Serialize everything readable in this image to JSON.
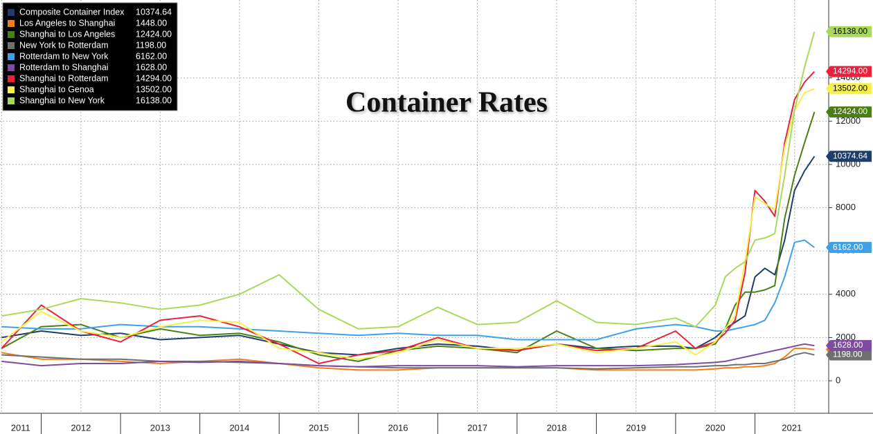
{
  "chart_data": {
    "type": "line",
    "title": "Container Rates",
    "legend": "upper left",
    "grid": true,
    "xlim": [
      2011.48,
      2021.93
    ],
    "ylim": [
      -1500,
      17600
    ],
    "yticks": [
      0,
      2000,
      4000,
      6000,
      8000,
      10000,
      12000,
      14000
    ],
    "xticks": [
      2011,
      2012,
      2013,
      2014,
      2015,
      2016,
      2017,
      2018,
      2019,
      2020,
      2021
    ],
    "x": [
      2011.5,
      2012,
      2012.5,
      2013,
      2013.5,
      2014,
      2014.5,
      2015,
      2015.5,
      2016,
      2016.5,
      2017,
      2017.5,
      2018,
      2018.5,
      2019,
      2019.5,
      2020,
      2020.25,
      2020.5,
      2020.625,
      2020.75,
      2020.875,
      2021,
      2021.125,
      2021.25,
      2021.375,
      2021.5,
      2021.625,
      2021.75
    ],
    "series": [
      {
        "name": "Composite Container Index",
        "legend_value": "10374.64",
        "color": "#1f3d6b",
        "values": [
          2000,
          2300,
          2100,
          2200,
          1900,
          2000,
          2100,
          1700,
          1300,
          1200,
          1500,
          1700,
          1600,
          1400,
          1700,
          1500,
          1600,
          1600,
          1500,
          2000,
          2400,
          2700,
          3000,
          4800,
          5200,
          4900,
          6500,
          8800,
          9700,
          10374.64
        ]
      },
      {
        "name": "Los Angeles to Shanghai",
        "legend_value": "1448.00",
        "color": "#f07f1a",
        "values": [
          1300,
          1000,
          1000,
          900,
          800,
          900,
          1000,
          800,
          600,
          500,
          500,
          600,
          600,
          600,
          600,
          500,
          500,
          500,
          500,
          550,
          600,
          600,
          650,
          650,
          700,
          800,
          1100,
          1500,
          1500,
          1448
        ]
      },
      {
        "name": "Shanghai to Los Angeles",
        "legend_value": "12424.00",
        "color": "#4a7f12",
        "values": [
          1500,
          2500,
          2600,
          2000,
          2400,
          2100,
          2200,
          1800,
          1200,
          900,
          1400,
          1600,
          1500,
          1300,
          2300,
          1500,
          1400,
          1500,
          1500,
          1700,
          2400,
          3500,
          4100,
          4100,
          4200,
          4400,
          7500,
          9500,
          11000,
          12424
        ]
      },
      {
        "name": "New York to Rotterdam",
        "legend_value": "1198.00",
        "color": "#6f6f6f",
        "values": [
          1200,
          1100,
          1000,
          1000,
          900,
          900,
          850,
          800,
          700,
          650,
          600,
          600,
          600,
          600,
          600,
          550,
          600,
          650,
          650,
          700,
          700,
          750,
          750,
          800,
          800,
          900,
          1000,
          1200,
          1300,
          1198
        ]
      },
      {
        "name": "Rotterdam to New York",
        "legend_value": "6162.00",
        "color": "#3ea0e6",
        "values": [
          2500,
          2400,
          2400,
          2600,
          2500,
          2500,
          2400,
          2300,
          2200,
          2100,
          2200,
          2100,
          2100,
          1900,
          1900,
          1900,
          2400,
          2600,
          2500,
          2300,
          2300,
          2400,
          2500,
          2600,
          2800,
          3600,
          4800,
          6400,
          6500,
          6162
        ]
      },
      {
        "name": "Rotterdam to Shanghai",
        "legend_value": "1628.00",
        "color": "#7f4aa3",
        "values": [
          900,
          700,
          800,
          800,
          900,
          850,
          900,
          800,
          700,
          650,
          700,
          700,
          700,
          650,
          700,
          700,
          700,
          750,
          800,
          850,
          900,
          1000,
          1100,
          1200,
          1300,
          1400,
          1500,
          1600,
          1700,
          1628
        ]
      },
      {
        "name": "Shanghai to Rotterdam",
        "legend_value": "14294.00",
        "color": "#e8213c",
        "values": [
          1500,
          3500,
          2300,
          1800,
          2800,
          3000,
          2500,
          1700,
          800,
          1200,
          1400,
          2000,
          1500,
          1400,
          1700,
          1400,
          1500,
          2300,
          1500,
          1800,
          2200,
          2800,
          5000,
          8800,
          8300,
          7600,
          11000,
          13000,
          13800,
          14294
        ]
      },
      {
        "name": "Shanghai to Genoa",
        "legend_value": "13502.00",
        "color": "#f5f04a",
        "values": [
          1800,
          3200,
          2300,
          2000,
          2500,
          2800,
          2700,
          1500,
          1300,
          1000,
          1300,
          1900,
          1500,
          1500,
          1700,
          1300,
          1500,
          1800,
          1200,
          1800,
          2400,
          3000,
          5500,
          8500,
          8200,
          7900,
          10800,
          12500,
          13300,
          13502
        ]
      },
      {
        "name": "Shanghai to New York",
        "legend_value": "16138.00",
        "color": "#a9d95a",
        "values": [
          3000,
          3300,
          3800,
          3600,
          3300,
          3500,
          4000,
          4900,
          3300,
          2400,
          2500,
          3400,
          2600,
          2700,
          3700,
          2700,
          2600,
          2900,
          2500,
          3500,
          4800,
          5200,
          5500,
          6500,
          6600,
          6800,
          9500,
          12500,
          14500,
          16138
        ]
      }
    ]
  }
}
